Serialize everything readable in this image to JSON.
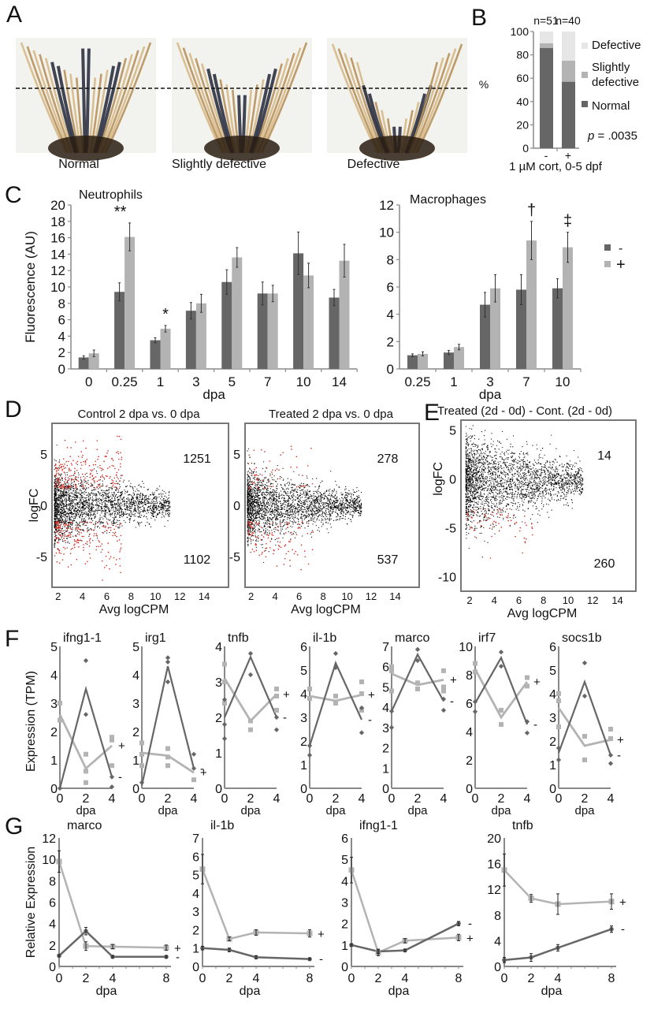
{
  "panels": {
    "A": {
      "letter": "A",
      "images": [
        {
          "label": "Normal",
          "shape": "normal"
        },
        {
          "label": "Slightly defective",
          "shape": "slight"
        },
        {
          "label": "Defective",
          "shape": "defective"
        }
      ]
    },
    "B": {
      "letter": "B"
    },
    "C": {
      "letter": "C"
    },
    "D": {
      "letter": "D"
    },
    "E": {
      "letter": "E"
    },
    "F": {
      "letter": "F"
    },
    "G": {
      "letter": "G"
    }
  },
  "colors": {
    "dark": "#666666",
    "light": "#b3b3b3",
    "lightest": "#e6e6e6",
    "red": "#d42a1e",
    "axis": "#888888"
  },
  "chart_data": [
    {
      "id": "B",
      "type": "bar",
      "stacked": true,
      "categories": [
        "-",
        "+"
      ],
      "n_labels": [
        "n=51",
        "n=40"
      ],
      "series": [
        {
          "name": "Normal",
          "values": [
            86,
            57
          ]
        },
        {
          "name": "Slightly defective",
          "values": [
            4,
            18
          ]
        },
        {
          "name": "Defective",
          "values": [
            10,
            25
          ]
        }
      ],
      "legend": [
        "Defective",
        "Slightly defective",
        "Normal"
      ],
      "legend_lines": [
        [
          "Defective"
        ],
        [
          "Slightly",
          "defective"
        ],
        [
          "Normal"
        ]
      ],
      "ylabel": "%",
      "xlabel": "1 µM cort, 0-5 dpf",
      "ylim": [
        0,
        100
      ],
      "yticks": [
        0,
        20,
        40,
        60,
        80,
        100
      ],
      "annotation": {
        "p_italic": "p",
        "text": " = .0035"
      },
      "legend_placement": "right"
    },
    {
      "id": "C-neutrophils",
      "type": "bar",
      "title": "Neutrophils",
      "ylabel": "Fluorescence (AU)",
      "xlabel": "dpa",
      "categories": [
        "0",
        "0.25",
        "1",
        "3",
        "5",
        "7",
        "10",
        "14"
      ],
      "ylim": [
        0,
        20
      ],
      "yticks": [
        0,
        2,
        4,
        6,
        8,
        10,
        12,
        14,
        16,
        18,
        20
      ],
      "series": [
        {
          "name": "-",
          "values": [
            1.4,
            9.4,
            3.5,
            7.1,
            10.6,
            9.2,
            14.1,
            8.7
          ],
          "errors": [
            0.2,
            1.1,
            0.3,
            1.0,
            1.5,
            1.4,
            2.6,
            1.0
          ]
        },
        {
          "name": "+",
          "values": [
            1.9,
            16.1,
            4.9,
            8.0,
            13.6,
            9.2,
            11.4,
            13.2
          ],
          "errors": [
            0.4,
            1.7,
            0.4,
            1.1,
            1.2,
            1.0,
            1.5,
            2.0
          ]
        }
      ],
      "annotations": [
        {
          "category": "0.25",
          "text": "**"
        },
        {
          "category": "1",
          "text": "*"
        }
      ]
    },
    {
      "id": "C-macrophages",
      "type": "bar",
      "title": "Macrophages",
      "xlabel": "dpa",
      "categories": [
        "0.25",
        "1",
        "3",
        "7",
        "10"
      ],
      "ylim": [
        0,
        12
      ],
      "yticks": [
        0,
        2,
        4,
        6,
        8,
        10,
        12
      ],
      "series": [
        {
          "name": "-",
          "values": [
            1.0,
            1.2,
            4.7,
            5.8,
            5.9
          ],
          "errors": [
            0.1,
            0.15,
            0.9,
            1.1,
            0.7
          ]
        },
        {
          "name": "+",
          "values": [
            1.1,
            1.6,
            5.9,
            9.4,
            8.9
          ],
          "errors": [
            0.15,
            0.2,
            1.0,
            1.4,
            1.1
          ]
        }
      ],
      "annotations": [
        {
          "category": "7",
          "text": "†"
        },
        {
          "category": "10",
          "text": "‡"
        }
      ],
      "legend": [
        "-",
        "+"
      ],
      "legend_placement": "right"
    },
    {
      "id": "D-control",
      "type": "scatter",
      "title": "Control 2 dpa vs. 0 dpa",
      "ylabel": "logFC",
      "xlabel": "Avg logCPM",
      "xticks": [
        2,
        4,
        6,
        8,
        10,
        12,
        14
      ],
      "yticks": [
        -5,
        0,
        5
      ],
      "xlim": [
        1.5,
        16
      ],
      "ylim": [
        -8,
        8
      ],
      "up_count": "1251",
      "down_count": "1102",
      "spread": 1.0,
      "up_frac": 1.0,
      "down_frac": 1.0
    },
    {
      "id": "D-treated",
      "type": "scatter",
      "title": "Treated 2 dpa vs. 0 dpa",
      "xlabel": "Avg logCPM",
      "xticks": [
        2,
        4,
        6,
        8,
        10,
        12,
        14
      ],
      "yticks": [
        -5,
        0,
        5
      ],
      "xlim": [
        1.5,
        16
      ],
      "ylim": [
        -8,
        8
      ],
      "up_count": "278",
      "down_count": "537",
      "spread": 1.0,
      "up_frac": 0.3,
      "down_frac": 0.55
    },
    {
      "id": "E",
      "type": "scatter",
      "title": "Treated (2d  - 0d) - Cont. (2d  - 0d)",
      "ylabel": "logFC",
      "xlabel": "Avg logCPM",
      "xticks": [
        2,
        4,
        6,
        8,
        10,
        12,
        14
      ],
      "yticks": [
        -10,
        -5,
        0,
        5
      ],
      "xlim": [
        1.3,
        15.5
      ],
      "ylim": [
        -11.5,
        6
      ],
      "up_count": "14",
      "down_count": "260",
      "spread": 1.4,
      "up_frac": 0.0,
      "down_frac": 0.3
    },
    {
      "id": "F",
      "type": "line",
      "ylabel": "Expression (TPM)",
      "xlabel": "dpa",
      "x": [
        0,
        2,
        4
      ],
      "genes": [
        {
          "name": "ifng1-1",
          "ymax": 5,
          "yticks": [
            0,
            1,
            2,
            3,
            4,
            5
          ],
          "minus": [
            0,
            3.5,
            0.4
          ],
          "plus": [
            2.6,
            0.7,
            1.5
          ],
          "minus_pts": [
            [
              0,
              0
            ],
            [
              2,
              4.5
            ],
            [
              2,
              2.6
            ],
            [
              4,
              0.05
            ],
            [
              4,
              0.4
            ]
          ],
          "plus_pts": [
            [
              0,
              3.0
            ],
            [
              0,
              2.4
            ],
            [
              2,
              1.2
            ],
            [
              2,
              0.6
            ],
            [
              2,
              0.2
            ],
            [
              4,
              1.8
            ],
            [
              4,
              1.7
            ],
            [
              4,
              0.8
            ]
          ]
        },
        {
          "name": "irg1",
          "ymax": 5,
          "yticks": [
            0,
            1,
            2,
            3,
            4,
            5
          ],
          "minus": [
            0.1,
            4.3,
            0.7
          ],
          "plus": [
            1.25,
            1.15,
            0.55
          ],
          "minus_pts": [
            [
              0,
              0.2
            ],
            [
              2,
              4.6
            ],
            [
              2,
              4.45
            ],
            [
              2,
              3.75
            ],
            [
              4,
              1.2
            ],
            [
              4,
              0.7
            ]
          ],
          "plus_pts": [
            [
              0,
              1.6
            ],
            [
              0,
              1.2
            ],
            [
              0,
              0.8
            ],
            [
              2,
              1.4
            ],
            [
              2,
              1.1
            ],
            [
              2,
              0.8
            ],
            [
              4,
              0.3
            ]
          ]
        },
        {
          "name": "tnfb",
          "ymax": 4,
          "yticks": [
            0,
            1,
            2,
            3,
            4
          ],
          "minus": [
            2.0,
            3.7,
            2.0
          ],
          "plus": [
            3.1,
            1.9,
            2.65
          ],
          "minus_pts": [
            [
              0,
              2.5
            ],
            [
              0,
              1.8
            ],
            [
              0,
              1.4
            ],
            [
              2,
              3.8
            ],
            [
              2,
              3.2
            ],
            [
              4,
              2.0
            ],
            [
              4,
              1.65
            ]
          ],
          "plus_pts": [
            [
              0,
              3.5
            ],
            [
              0,
              3.0
            ],
            [
              0,
              2.4
            ],
            [
              2,
              1.9
            ],
            [
              2,
              1.65
            ],
            [
              4,
              2.8
            ],
            [
              4,
              2.6
            ],
            [
              4,
              2.2
            ]
          ]
        },
        {
          "name": "il-1b",
          "ymax": 6,
          "yticks": [
            0,
            1,
            2,
            3,
            4,
            5,
            6
          ],
          "minus": [
            1.8,
            5.3,
            2.9
          ],
          "plus": [
            3.9,
            3.7,
            3.95
          ],
          "minus_pts": [
            [
              0,
              1.4
            ],
            [
              0,
              1.8
            ],
            [
              2,
              5.7
            ],
            [
              2,
              5.1
            ],
            [
              4,
              3.4
            ],
            [
              4,
              2.35
            ]
          ],
          "plus_pts": [
            [
              0,
              4.2
            ],
            [
              0,
              3.8
            ],
            [
              2,
              3.9
            ],
            [
              2,
              3.6
            ],
            [
              4,
              4.5
            ],
            [
              4,
              4.0
            ],
            [
              4,
              3.3
            ]
          ]
        },
        {
          "name": "marco",
          "ymax": 7,
          "yticks": [
            0,
            1,
            2,
            3,
            4,
            5,
            6,
            7
          ],
          "minus": [
            3.8,
            6.6,
            4.3
          ],
          "plus": [
            5.65,
            5.1,
            5.35
          ],
          "minus_pts": [
            [
              0,
              3.0
            ],
            [
              0,
              3.8
            ],
            [
              2,
              6.85
            ],
            [
              2,
              6.3
            ],
            [
              4,
              4.4
            ],
            [
              4,
              3.85
            ]
          ],
          "plus_pts": [
            [
              0,
              6.0
            ],
            [
              0,
              5.8
            ],
            [
              0,
              4.8
            ],
            [
              2,
              5.2
            ],
            [
              2,
              4.9
            ],
            [
              4,
              5.8
            ],
            [
              4,
              5.0
            ],
            [
              4,
              4.8
            ]
          ]
        },
        {
          "name": "irf7",
          "ymax": 10,
          "yticks": [
            0,
            2,
            4,
            6,
            8,
            10
          ],
          "minus": [
            6.0,
            9.2,
            4.5
          ],
          "plus": [
            8.4,
            5.0,
            7.5
          ],
          "minus_pts": [
            [
              0,
              5.4
            ],
            [
              0,
              6.1
            ],
            [
              2,
              9.6
            ],
            [
              2,
              8.6
            ],
            [
              4,
              4.7
            ],
            [
              4,
              3.9
            ]
          ],
          "plus_pts": [
            [
              0,
              8.8
            ],
            [
              0,
              8.2
            ],
            [
              2,
              5.5
            ],
            [
              2,
              4.5
            ],
            [
              4,
              7.8
            ],
            [
              4,
              7.2
            ]
          ]
        },
        {
          "name": "socs1b",
          "ymax": 6,
          "yticks": [
            0,
            1,
            2,
            3,
            4,
            5,
            6
          ],
          "minus": [
            1.5,
            4.5,
            1.4
          ],
          "plus": [
            3.4,
            1.8,
            2.05
          ],
          "minus_pts": [
            [
              0,
              1.7
            ],
            [
              0,
              1.2
            ],
            [
              2,
              5.3
            ],
            [
              2,
              3.9
            ],
            [
              4,
              1.05
            ],
            [
              4,
              1.4
            ]
          ],
          "plus_pts": [
            [
              0,
              4.0
            ],
            [
              0,
              3.7
            ],
            [
              0,
              2.6
            ],
            [
              2,
              2.2
            ],
            [
              2,
              1.2
            ],
            [
              4,
              2.5
            ],
            [
              4,
              2.1
            ]
          ]
        }
      ],
      "legend": [
        "+",
        "-"
      ]
    },
    {
      "id": "G",
      "type": "line",
      "ylabel": "Relative Expression",
      "xlabel": "dpa",
      "x": [
        0,
        2,
        4,
        8
      ],
      "xticks": [
        0,
        2,
        4,
        8
      ],
      "genes": [
        {
          "name": "marco",
          "ymax": 12,
          "yticks": [
            0,
            2,
            4,
            6,
            8,
            10,
            12
          ],
          "minus": [
            1.0,
            3.3,
            0.9,
            0.9
          ],
          "minus_err": [
            0.1,
            0.35,
            0.1,
            0.1
          ],
          "plus": [
            9.8,
            1.9,
            1.85,
            1.75
          ],
          "plus_err": [
            1.0,
            0.4,
            0.2,
            0.25
          ]
        },
        {
          "name": "il-1b",
          "ymax": 7,
          "yticks": [
            0,
            1,
            2,
            3,
            4,
            5,
            6,
            7
          ],
          "minus": [
            1.0,
            0.9,
            0.5,
            0.4
          ],
          "minus_err": [
            0.1,
            0.1,
            0.08,
            0.05
          ],
          "plus": [
            5.3,
            1.5,
            1.85,
            1.8
          ],
          "plus_err": [
            0.8,
            0.1,
            0.15,
            0.2
          ]
        },
        {
          "name": "ifng1-1",
          "ymax": 6,
          "yticks": [
            0,
            1,
            2,
            3,
            4,
            5,
            6
          ],
          "minus": [
            1.0,
            0.7,
            0.75,
            2.0
          ],
          "minus_err": [
            0.05,
            0.1,
            0.05,
            0.1
          ],
          "plus": [
            4.5,
            0.65,
            1.2,
            1.35
          ],
          "plus_err": [
            0.6,
            0.15,
            0.1,
            0.15
          ]
        },
        {
          "name": "tnfb",
          "ymax": 20,
          "yticks": [
            0,
            4,
            8,
            12,
            16,
            20
          ],
          "minus": [
            1.0,
            1.4,
            2.9,
            5.8
          ],
          "minus_err": [
            0.4,
            0.6,
            0.5,
            0.5
          ],
          "plus": [
            15.0,
            10.6,
            9.7,
            10.1
          ],
          "plus_err": [
            2.5,
            0.6,
            1.6,
            1.2
          ]
        }
      ],
      "legend": [
        "+",
        "-"
      ]
    }
  ]
}
